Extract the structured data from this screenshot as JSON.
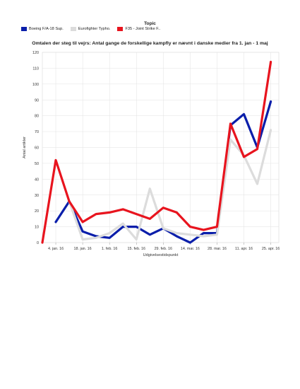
{
  "legend": {
    "title": "Topic",
    "items": [
      {
        "label": "Boeing F/A-18 Sup.",
        "color": "#0a1eaa"
      },
      {
        "label": "Eurofighter Typho.",
        "color": "#dcdcdc"
      },
      {
        "label": "F35 - Joint Strike F..",
        "color": "#e8141e"
      }
    ]
  },
  "chart_data": {
    "type": "line",
    "title": "Omtalen der steg til vejrs: Antal gange de forskellige kampfly er nævnt i danske medier fra 1. jan - 1 maj",
    "xlabel": "Udgivelsestidspunkt",
    "ylabel": "Antal artikler",
    "ylim": [
      0,
      120
    ],
    "yticks": [
      0,
      10,
      20,
      30,
      40,
      50,
      60,
      70,
      80,
      90,
      100,
      110,
      120
    ],
    "xtick_labels": [
      "4. jan. 16",
      "18. jan. 16",
      "1. feb. 16",
      "15. feb. 16",
      "29. feb. 16",
      "14. mar. 16",
      "28. mar. 16",
      "11. apr. 16",
      "25. apr. 16"
    ],
    "grid": true,
    "series": [
      {
        "name": "Boeing F/A-18 Sup.",
        "color": "#0a1eaa",
        "points": [
          [
            1,
            13
          ],
          [
            2,
            26
          ],
          [
            3,
            7
          ],
          [
            4,
            4
          ],
          [
            5,
            3
          ],
          [
            6,
            10
          ],
          [
            7,
            10
          ],
          [
            8,
            5
          ],
          [
            9,
            9
          ],
          [
            10,
            4
          ],
          [
            11,
            0
          ],
          [
            12,
            6
          ],
          [
            13,
            6
          ],
          [
            14,
            74
          ],
          [
            15,
            81
          ],
          [
            16,
            60
          ],
          [
            17,
            89
          ]
        ]
      },
      {
        "name": "Eurofighter Typho.",
        "color": "#dcdcdc",
        "points": [
          [
            2,
            26
          ],
          [
            3,
            2
          ],
          [
            4,
            3
          ],
          [
            5,
            6
          ],
          [
            6,
            12
          ],
          [
            7,
            2
          ],
          [
            8,
            34
          ],
          [
            9,
            9
          ],
          [
            10,
            6
          ],
          [
            11,
            5
          ],
          [
            12,
            4
          ],
          [
            13,
            5
          ],
          [
            14,
            65
          ],
          [
            15,
            55
          ],
          [
            16,
            37
          ],
          [
            17,
            71
          ]
        ]
      },
      {
        "name": "F35 - Joint Strike F..",
        "color": "#e8141e",
        "points": [
          [
            0,
            0
          ],
          [
            1,
            52
          ],
          [
            2,
            26
          ],
          [
            3,
            13
          ],
          [
            4,
            18
          ],
          [
            5,
            19
          ],
          [
            6,
            21
          ],
          [
            7,
            18
          ],
          [
            8,
            15
          ],
          [
            9,
            22
          ],
          [
            10,
            19
          ],
          [
            11,
            10
          ],
          [
            12,
            8
          ],
          [
            13,
            10
          ],
          [
            14,
            75
          ],
          [
            15,
            54
          ],
          [
            16,
            59
          ],
          [
            17,
            114
          ]
        ]
      }
    ]
  }
}
